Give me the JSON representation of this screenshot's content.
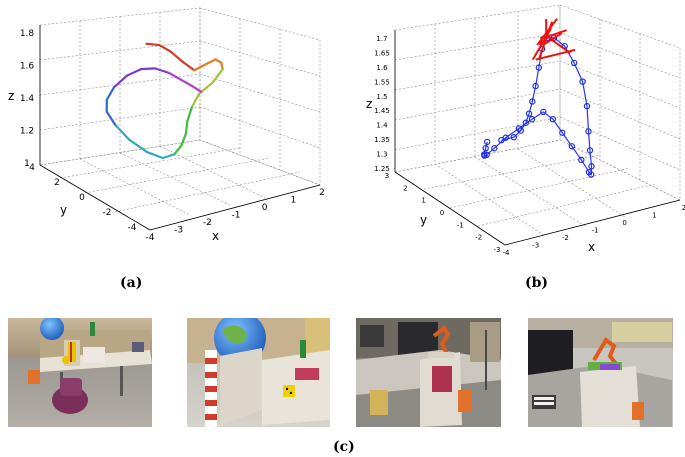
{
  "captions": {
    "a": "(a)",
    "b": "(b)",
    "c": "(c)"
  },
  "panel_a": {
    "xlabel": "x",
    "ylabel": "y",
    "zlabel": "z",
    "xticks": [
      "-4",
      "-3",
      "-2",
      "-1",
      "0",
      "1",
      "2"
    ],
    "yticks": [
      "4",
      "2",
      "0",
      "-2",
      "-4"
    ],
    "zticks": [
      "1.8",
      "1.6",
      "1.4",
      "1.2",
      "1"
    ]
  },
  "panel_b": {
    "xlabel": "x",
    "ylabel": "y",
    "zlabel": "z",
    "xticks": [
      "-4",
      "-3",
      "-2",
      "-1",
      "0",
      "1",
      "2"
    ],
    "yticks": [
      "3",
      "2",
      "1",
      "0",
      "-1",
      "-2",
      "-3"
    ],
    "zticks": [
      "1.7",
      "1.65",
      "1.6",
      "1.55",
      "1.5",
      "1.45",
      "1.4",
      "1.35",
      "1.3",
      "1.25"
    ]
  },
  "colors": {
    "trajectory_b_points": "#1f2fe0",
    "trajectory_b_line": "#2535ff",
    "loop_edges": "#ee1111",
    "rainbow": [
      "#d43a2a",
      "#e07b22",
      "#a0c23a",
      "#3cbf3c",
      "#31a7c4",
      "#3367d0",
      "#7a3bd0",
      "#b040c0"
    ]
  },
  "chart_data": [
    {
      "type": "line",
      "panel": "a",
      "xlabel": "x",
      "ylabel": "y",
      "zlabel": "z",
      "xlim": [
        -4,
        2
      ],
      "ylim": [
        -4,
        4
      ],
      "zlim": [
        1,
        1.8
      ],
      "color_by": "time (rainbow)",
      "series": [
        {
          "x": [
            -1.6,
            -1.2,
            -0.9,
            -0.6,
            -0.3,
            0.0,
            0.3,
            0.6,
            0.8,
            0.6,
            0.2,
            -0.1,
            -0.4,
            -0.6,
            -0.9,
            -1.3,
            -1.8,
            -2.3,
            -2.8,
            -3.1,
            -3.2,
            -3.0,
            -2.6,
            -2.1,
            -1.7,
            -1.4,
            -1.1,
            -0.8,
            -0.5,
            -0.3
          ],
          "y": [
            1.2,
            1.1,
            0.9,
            0.6,
            0.4,
            0.2,
            0.1,
            0.3,
            0.6,
            0.9,
            1.1,
            1.0,
            0.7,
            0.4,
            0.1,
            -0.2,
            -0.4,
            -0.3,
            0.0,
            0.4,
            0.8,
            1.2,
            1.5,
            1.6,
            1.4,
            1.0,
            0.6,
            0.3,
            0.1,
            -0.1
          ],
          "z": [
            1.72,
            1.7,
            1.66,
            1.6,
            1.55,
            1.58,
            1.6,
            1.56,
            1.5,
            1.42,
            1.36,
            1.3,
            1.25,
            1.2,
            1.16,
            1.14,
            1.15,
            1.2,
            1.28,
            1.36,
            1.42,
            1.46,
            1.5,
            1.54,
            1.57,
            1.58,
            1.56,
            1.52,
            1.48,
            1.45
          ]
        }
      ]
    },
    {
      "type": "line",
      "panel": "b",
      "xlabel": "x",
      "ylabel": "y",
      "zlabel": "z",
      "xlim": [
        -4,
        2
      ],
      "ylim": [
        -3,
        3
      ],
      "zlim": [
        1.25,
        1.7
      ],
      "markers": "circle",
      "series": [
        {
          "x": [
            -2.6,
            -2.4,
            -2.2,
            -2.0,
            -1.8,
            -1.6,
            -1.4,
            -1.2,
            -1.0,
            -0.8,
            -0.6,
            -0.4,
            -0.2,
            0.0,
            0.2,
            0.4,
            0.6,
            0.8,
            1.0,
            1.2,
            1.3,
            1.2,
            1.0,
            0.7,
            0.4,
            0.1,
            -0.2,
            -0.5,
            -0.8,
            -1.1,
            -1.4,
            -1.7,
            -2.0,
            -2.3
          ],
          "y": [
            0.2,
            0.6,
            1.0,
            1.3,
            1.5,
            1.4,
            1.1,
            0.7,
            0.3,
            0.0,
            -0.2,
            -0.4,
            -0.6,
            -0.8,
            -0.9,
            -0.7,
            -0.4,
            0.0,
            0.4,
            0.8,
            1.2,
            1.5,
            1.7,
            1.8,
            1.7,
            1.5,
            1.2,
            0.9,
            0.6,
            0.3,
            0.0,
            -0.2,
            -0.3,
            -0.1
          ],
          "z": [
            1.42,
            1.38,
            1.34,
            1.32,
            1.31,
            1.33,
            1.37,
            1.41,
            1.45,
            1.48,
            1.46,
            1.42,
            1.38,
            1.34,
            1.3,
            1.28,
            1.29,
            1.32,
            1.36,
            1.42,
            1.48,
            1.53,
            1.58,
            1.61,
            1.62,
            1.6,
            1.56,
            1.52,
            1.49,
            1.47,
            1.46,
            1.45,
            1.44,
            1.43
          ]
        }
      ],
      "loop_closure_edges": 10
    }
  ],
  "photos": [
    {
      "name": "photo-1"
    },
    {
      "name": "photo-2"
    },
    {
      "name": "photo-3"
    },
    {
      "name": "photo-4"
    }
  ]
}
